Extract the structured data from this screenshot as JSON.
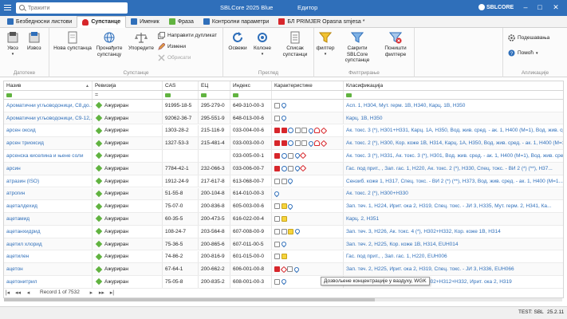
{
  "titlebar": {
    "search_placeholder": "Тражити",
    "app_title": "SBLCore 2025 Blue",
    "doc_title": "Едитор",
    "brand": "SBLCORE"
  },
  "tabs": [
    {
      "label": "Безбедносни листови",
      "active": false,
      "color": "#2f6fba"
    },
    {
      "label": "Супстанце",
      "active": true,
      "color": "#d7262b"
    },
    {
      "label": "Именик",
      "active": false,
      "color": "#2f6fba"
    },
    {
      "label": "Фраза",
      "active": false,
      "color": "#61b340"
    },
    {
      "label": "Контролни параметри",
      "active": false,
      "color": "#2f6fba"
    },
    {
      "label": "БЛ PRIMJER Opasna smjesa *",
      "active": false,
      "color": "#d7262b"
    }
  ],
  "ribbon": {
    "groups": {
      "datoteke": "Датотеке",
      "supstance": "Супстанце",
      "pregled": "Преглед",
      "filtriranje": "Филтрирање",
      "aplikacije": "Апликације"
    },
    "buttons": {
      "uvoz": "Увоз",
      "izvoz": "Извоз",
      "nova": "Нова супстанца",
      "pronadji": "Пронађите супстанцу",
      "uporedite": "Упоредите",
      "duplikat": "Направити дупликат",
      "izmeni": "Измени",
      "obrisati": "Обрисати",
      "osvezi": "Освежи",
      "kolone": "Колоне",
      "spisak": "Списак супстанци",
      "filter": "филтер",
      "sakriti": "Сакрити SBLCore супстанце",
      "ponisti": "Поништи филтере",
      "podesavanja": "Подешавања",
      "pomoc": "Помоћ"
    }
  },
  "grid": {
    "columns": [
      "Назив",
      "Ревизија",
      "CAS",
      "ЕЦ",
      "Индекс",
      "Карактеристике",
      "Класификација"
    ],
    "rows": [
      {
        "name": "Ароматични угљоводоници, C8,до...",
        "rev": "Ажуриран",
        "cas": "91995-18-5",
        "ec": "295-279-0",
        "idx": "649-310-00-3",
        "ghs": [
          "gray",
          "drop"
        ],
        "cls": "Асп. 1, H304, Мут. герм. 1B, H340, Карц. 1B, H350"
      },
      {
        "name": "Ароматични угљоводоници, C9-12,...",
        "rev": "Ажуриран",
        "cas": "92062-36-7",
        "ec": "295-551-9",
        "idx": "648-013-00-6",
        "ghs": [
          "gray",
          "drop"
        ],
        "cls": "Карц. 1B, H350"
      },
      {
        "name": "арсен оксид",
        "rev": "Ажуриран",
        "cas": "1303-28-2",
        "ec": "215-116-9",
        "idx": "033-004-00-6",
        "ghs": [
          "redfill",
          "redfill",
          "circle",
          "gray",
          "gray",
          "drop",
          "person",
          "red"
        ],
        "cls": "Ак. токс. 3 (*), H301+H331, Карц. 1A, H350, Вод. жив. сред. - ак. 1, H400 (M=1), Вод. жив. сре..."
      },
      {
        "name": "арсен триоксид",
        "rev": "Ажуриран",
        "cas": "1327-53-3",
        "ec": "215-481-4",
        "idx": "033-003-00-0",
        "ghs": [
          "redfill",
          "redfill",
          "circle",
          "gray",
          "gray",
          "drop",
          "person",
          "red"
        ],
        "cls": "Ак. токс. 2 (*), H300, Кор. коже 1B, H314, Карц. 1A, H350, Вод. жив. сред. - ак. 1, H400 (M=1),..."
      },
      {
        "name": "арсенска киселина и њене соли",
        "rev": "Ажуриран",
        "cas": "",
        "ec": "",
        "idx": "033-005-00-1",
        "ghs": [
          "redfill",
          "circle",
          "gray",
          "drop",
          "red"
        ],
        "cls": "Ак. токс. 3 (*), H331, Ак. токс. 3 (*), H301, Вод. жив. сред. - ак. 1, H400 (M=1), Вод. жив. сре..."
      },
      {
        "name": "арсин",
        "rev": "Ажуриран",
        "cas": "7784-42-1",
        "ec": "232-066-3",
        "idx": "033-006-00-7",
        "ghs": [
          "redfill",
          "circle",
          "gray",
          "drop",
          "red"
        ],
        "cls": "Гас. под прит., , Зап. гас. 1, H220, Ак. токс. 2 (*), H330, Спец. токс. - ВИ 2 (*) (**), H37..."
      },
      {
        "name": "атразин (ISO)",
        "rev": "Ажуриран",
        "cas": "1912-24-9",
        "ec": "217-617-8",
        "idx": "613-068-00-7",
        "ghs": [
          "gray",
          "gray",
          "drop"
        ],
        "cls": "Сензиб. коже 1, H317, Спец. токс. - ВИ 2 (*) (**), H373, Вод. жив. сред. - ак. 1, H400 (M=1..."
      },
      {
        "name": "атрогин",
        "rev": "Ажуриран",
        "cas": "51-55-8",
        "ec": "200-104-8",
        "idx": "614-010-00-3",
        "ghs": [
          "drop"
        ],
        "cls": "Ак. токс. 2 (*), H300+H330"
      },
      {
        "name": "ацеталдехид",
        "rev": "Ажуриран",
        "cas": "75-07-0",
        "ec": "200-836-8",
        "idx": "605-003-00-6",
        "ghs": [
          "gray",
          "yellow",
          "drop"
        ],
        "cls": "Зап. теч. 1, H224, Ирит. ока 2, H319, Спец. токс. - ЈИ 3, H335, Мут. герм. 2, H341, Ка..."
      },
      {
        "name": "ацетамид",
        "rev": "Ажуриран",
        "cas": "60-35-5",
        "ec": "200-473-5",
        "idx": "616-022-00-4",
        "ghs": [
          "gray",
          "yellow"
        ],
        "cls": "Карц. 2, H351"
      },
      {
        "name": "ацетанхидрид",
        "rev": "Ажуриран",
        "cas": "108-24-7",
        "ec": "203-564-8",
        "idx": "607-008-00-9",
        "ghs": [
          "gray",
          "gray",
          "yellow",
          "drop"
        ],
        "cls": "Зап. теч. 3, H226, Ак. токс. 4 (*), H302+H332, Кор. коже 1B, H314"
      },
      {
        "name": "ацетил хлорид",
        "rev": "Ажуриран",
        "cas": "75-36-5",
        "ec": "200-865-6",
        "idx": "607-011-00-5",
        "ghs": [
          "gray",
          "drop"
        ],
        "cls": "Зап. теч. 2, H225, Кор. коже 1B, H314, EUH014"
      },
      {
        "name": "ацетилен",
        "rev": "Ажуриран",
        "cas": "74-86-2",
        "ec": "200-816-9",
        "idx": "601-015-00-0",
        "ghs": [
          "gray",
          "yellow"
        ],
        "cls": "Гас. под прит., , Зап. гас. 1, H220, EUH006"
      },
      {
        "name": "ацетон",
        "rev": "Ажуриран",
        "cas": "67-64-1",
        "ec": "200-662-2",
        "idx": "606-001-00-8",
        "ghs": [
          "redfill",
          "red",
          "gray",
          "drop"
        ],
        "cls": "Зап. теч. 2, H225, Ирит. ока 2, H319, Спец. токс. - ЈИ 3, H336, EUH066"
      },
      {
        "name": "ацетонитрил",
        "rev": "Ажуриран",
        "cas": "75-05-8",
        "ec": "200-835-2",
        "idx": "608-001-00-3",
        "ghs": [
          "gray",
          "drop"
        ],
        "cls": "Зап. теч. 2, H225, Ак. токс. 4 (*), H302+H312+H332, Ирит. ока 2, H319"
      }
    ]
  },
  "tooltip": "Дозвољене концентрације у ваздуху, WGK",
  "pager": {
    "record": "Record 1 of 7532"
  },
  "status": {
    "test": "TEST: SBL",
    "version": "25.2.11"
  }
}
